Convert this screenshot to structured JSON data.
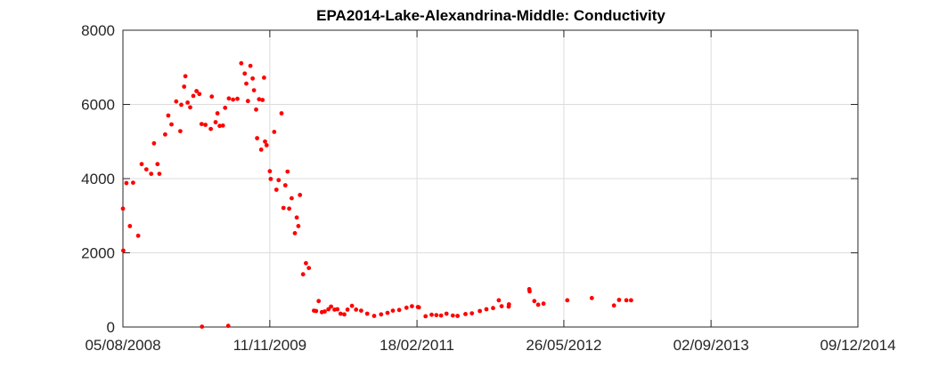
{
  "chart_data": {
    "type": "scatter",
    "title": "EPA2014-Lake-Alexandrina-Middle: Conductivity",
    "xlabel": "",
    "ylabel": "",
    "xlim": [
      "2008-08-05",
      "2014-12-09"
    ],
    "ylim": [
      0,
      8000
    ],
    "grid": true,
    "marker_color": "#ff0000",
    "x_tick_labels": [
      "05/08/2008",
      "11/11/2009",
      "18/02/2011",
      "26/05/2012",
      "02/09/2013",
      "09/12/2014"
    ],
    "y_tick_labels": [
      "0",
      "2000",
      "4000",
      "6000",
      "8000"
    ],
    "y_ticks": [
      0,
      2000,
      4000,
      6000,
      8000
    ],
    "series": [
      {
        "name": "",
        "points": [
          [
            "2008-08-05",
            3190
          ],
          [
            "2008-08-06",
            2060
          ],
          [
            "2008-08-16",
            3880
          ],
          [
            "2008-08-27",
            2720
          ],
          [
            "2008-09-06",
            3890
          ],
          [
            "2008-09-22",
            2460
          ],
          [
            "2008-10-03",
            4390
          ],
          [
            "2008-10-18",
            4250
          ],
          [
            "2008-11-02",
            4130
          ],
          [
            "2008-11-11",
            4950
          ],
          [
            "2008-11-22",
            4390
          ],
          [
            "2008-11-28",
            4130
          ],
          [
            "2008-12-16",
            5190
          ],
          [
            "2008-12-26",
            5700
          ],
          [
            "2009-01-05",
            5460
          ],
          [
            "2009-01-20",
            6080
          ],
          [
            "2009-02-02",
            5280
          ],
          [
            "2009-02-05",
            5990
          ],
          [
            "2009-02-14",
            6480
          ],
          [
            "2009-02-18",
            6760
          ],
          [
            "2009-02-25",
            6050
          ],
          [
            "2009-03-05",
            5920
          ],
          [
            "2009-03-15",
            6230
          ],
          [
            "2009-03-25",
            6360
          ],
          [
            "2009-04-03",
            6280
          ],
          [
            "2009-04-10",
            5470
          ],
          [
            "2009-04-22",
            5450
          ],
          [
            "2009-05-09",
            5340
          ],
          [
            "2009-05-12",
            6210
          ],
          [
            "2009-05-24",
            5520
          ],
          [
            "2009-05-30",
            5760
          ],
          [
            "2009-06-06",
            5420
          ],
          [
            "2009-06-16",
            5430
          ],
          [
            "2009-06-23",
            5910
          ],
          [
            "2009-07-05",
            6160
          ],
          [
            "2009-07-18",
            6130
          ],
          [
            "2009-04-11",
            10
          ],
          [
            "2009-07-03",
            30
          ],
          [
            "2009-08-01",
            6150
          ],
          [
            "2009-08-13",
            7110
          ],
          [
            "2009-08-24",
            6830
          ],
          [
            "2009-08-29",
            6560
          ],
          [
            "2009-09-03",
            6090
          ],
          [
            "2009-09-11",
            7040
          ],
          [
            "2009-09-18",
            6700
          ],
          [
            "2009-09-22",
            6380
          ],
          [
            "2009-09-29",
            5860
          ],
          [
            "2009-10-02",
            5090
          ],
          [
            "2009-10-08",
            6140
          ],
          [
            "2009-10-15",
            4780
          ],
          [
            "2009-10-19",
            6120
          ],
          [
            "2009-10-24",
            6720
          ],
          [
            "2009-10-27",
            5000
          ],
          [
            "2009-11-01",
            4900
          ],
          [
            "2009-11-11",
            4200
          ],
          [
            "2009-11-14",
            3990
          ],
          [
            "2009-11-25",
            5260
          ],
          [
            "2009-12-02",
            3700
          ],
          [
            "2009-12-09",
            3960
          ],
          [
            "2009-12-18",
            5760
          ],
          [
            "2009-12-24",
            3210
          ],
          [
            "2009-12-30",
            3820
          ],
          [
            "2010-01-06",
            4190
          ],
          [
            "2010-01-11",
            3190
          ],
          [
            "2010-01-19",
            3470
          ],
          [
            "2010-01-29",
            2530
          ],
          [
            "2010-02-04",
            2950
          ],
          [
            "2010-02-09",
            2720
          ],
          [
            "2010-02-14",
            3560
          ],
          [
            "2010-02-24",
            1420
          ],
          [
            "2010-03-05",
            1720
          ],
          [
            "2010-03-14",
            1590
          ],
          [
            "2010-03-30",
            440
          ],
          [
            "2010-04-06",
            430
          ],
          [
            "2010-04-14",
            700
          ],
          [
            "2010-04-24",
            400
          ],
          [
            "2010-05-03",
            420
          ],
          [
            "2010-05-15",
            480
          ],
          [
            "2010-05-23",
            550
          ],
          [
            "2010-06-03",
            470
          ],
          [
            "2010-06-12",
            480
          ],
          [
            "2010-06-22",
            360
          ],
          [
            "2010-07-04",
            340
          ],
          [
            "2010-07-14",
            470
          ],
          [
            "2010-07-28",
            570
          ],
          [
            "2010-08-10",
            470
          ],
          [
            "2010-08-26",
            440
          ],
          [
            "2010-09-14",
            360
          ],
          [
            "2010-10-06",
            300
          ],
          [
            "2010-10-28",
            340
          ],
          [
            "2010-11-17",
            380
          ],
          [
            "2010-12-04",
            440
          ],
          [
            "2010-12-24",
            460
          ],
          [
            "2011-01-16",
            520
          ],
          [
            "2011-02-02",
            560
          ],
          [
            "2011-02-21",
            540
          ],
          [
            "2011-02-24",
            530
          ],
          [
            "2011-03-17",
            290
          ],
          [
            "2011-04-05",
            330
          ],
          [
            "2011-04-20",
            320
          ],
          [
            "2011-05-05",
            310
          ],
          [
            "2011-05-22",
            360
          ],
          [
            "2011-06-11",
            310
          ],
          [
            "2011-06-26",
            300
          ],
          [
            "2011-07-21",
            350
          ],
          [
            "2011-08-10",
            370
          ],
          [
            "2011-09-04",
            430
          ],
          [
            "2011-09-25",
            480
          ],
          [
            "2011-10-16",
            510
          ],
          [
            "2011-11-03",
            720
          ],
          [
            "2011-11-12",
            560
          ],
          [
            "2011-12-04",
            550
          ],
          [
            "2011-12-05",
            610
          ],
          [
            "2012-02-07",
            1020
          ],
          [
            "2012-02-08",
            960
          ],
          [
            "2012-02-23",
            700
          ],
          [
            "2012-03-06",
            600
          ],
          [
            "2012-03-23",
            630
          ],
          [
            "2012-06-06",
            720
          ],
          [
            "2012-08-22",
            780
          ],
          [
            "2012-10-31",
            580
          ],
          [
            "2012-11-16",
            730
          ],
          [
            "2012-12-09",
            720
          ],
          [
            "2012-12-24",
            720
          ]
        ]
      }
    ]
  }
}
